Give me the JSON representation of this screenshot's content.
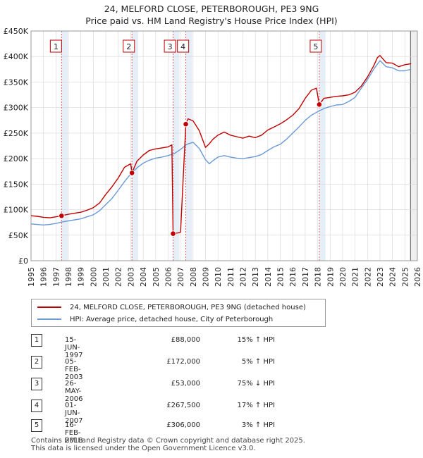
{
  "chart_data": {
    "type": "line",
    "title": "24, MELFORD CLOSE, PETERBOROUGH, PE3 9NG",
    "subtitle": "Price paid vs. HM Land Registry's House Price Index (HPI)",
    "xlim": [
      1995,
      2026
    ],
    "ylim": [
      0,
      450000
    ],
    "x_ticks": [
      "1995",
      "1996",
      "1997",
      "1998",
      "1999",
      "2000",
      "2001",
      "2002",
      "2003",
      "2004",
      "2005",
      "2006",
      "2007",
      "2008",
      "2009",
      "2010",
      "2011",
      "2012",
      "2013",
      "2014",
      "2015",
      "2016",
      "2017",
      "2018",
      "2019",
      "2020",
      "2021",
      "2022",
      "2023",
      "2024",
      "2025",
      "2026"
    ],
    "y_ticks": [
      "£0",
      "£50K",
      "£100K",
      "£150K",
      "£200K",
      "£250K",
      "£300K",
      "£350K",
      "£400K",
      "£450K"
    ],
    "y_tick_values": [
      0,
      50000,
      100000,
      150000,
      200000,
      250000,
      300000,
      350000,
      400000,
      450000
    ],
    "grid": true,
    "series": [
      {
        "name": "24, MELFORD CLOSE, PETERBOROUGH, PE3 9NG (detached house)",
        "color": "#c00000",
        "x": [
          1995.0,
          1995.5,
          1996.0,
          1996.5,
          1997.0,
          1997.45,
          1998.0,
          1998.5,
          1999.0,
          1999.5,
          2000.0,
          2000.5,
          2001.0,
          2001.5,
          2002.0,
          2002.5,
          2003.0,
          2003.1,
          2003.5,
          2004.0,
          2004.5,
          2005.0,
          2005.5,
          2006.0,
          2006.3,
          2006.4,
          2006.9,
          2007.0,
          2007.42,
          2007.6,
          2008.0,
          2008.5,
          2009.0,
          2009.3,
          2009.6,
          2010.0,
          2010.5,
          2011.0,
          2011.5,
          2012.0,
          2012.5,
          2013.0,
          2013.5,
          2014.0,
          2014.5,
          2015.0,
          2015.5,
          2016.0,
          2016.5,
          2017.0,
          2017.5,
          2017.9,
          2018.13,
          2018.5,
          2019.0,
          2019.5,
          2020.0,
          2020.5,
          2021.0,
          2021.5,
          2022.0,
          2022.5,
          2022.8,
          2023.0,
          2023.5,
          2024.0,
          2024.5,
          2025.0,
          2025.5
        ],
        "y": [
          88000,
          87000,
          85000,
          84000,
          86000,
          88000,
          91000,
          93000,
          95000,
          99000,
          104000,
          113000,
          130000,
          145000,
          162000,
          183000,
          190000,
          172000,
          195000,
          207000,
          216000,
          219000,
          221000,
          223000,
          227000,
          53000,
          55000,
          56000,
          267500,
          278000,
          274000,
          255000,
          222000,
          229000,
          238000,
          246000,
          252000,
          246000,
          243000,
          240000,
          244000,
          241000,
          246000,
          256000,
          262000,
          268000,
          276000,
          285000,
          298000,
          318000,
          334000,
          338000,
          306000,
          318000,
          320000,
          322000,
          323000,
          325000,
          330000,
          342000,
          360000,
          382000,
          398000,
          402000,
          388000,
          387000,
          380000,
          384000,
          386000
        ]
      },
      {
        "name": "HPI: Average price, detached house, City of Peterborough",
        "color": "#6a9ad4",
        "x": [
          1995.0,
          1995.5,
          1996.0,
          1996.5,
          1997.0,
          1997.5,
          1998.0,
          1998.5,
          1999.0,
          1999.5,
          2000.0,
          2000.5,
          2001.0,
          2001.5,
          2002.0,
          2002.5,
          2003.0,
          2003.5,
          2004.0,
          2004.5,
          2005.0,
          2005.5,
          2006.0,
          2006.5,
          2007.0,
          2007.5,
          2008.0,
          2008.5,
          2009.0,
          2009.3,
          2009.6,
          2010.0,
          2010.5,
          2011.0,
          2011.5,
          2012.0,
          2012.5,
          2013.0,
          2013.5,
          2014.0,
          2014.5,
          2015.0,
          2015.5,
          2016.0,
          2016.5,
          2017.0,
          2017.5,
          2018.0,
          2018.5,
          2019.0,
          2019.5,
          2020.0,
          2020.5,
          2021.0,
          2021.5,
          2022.0,
          2022.5,
          2023.0,
          2023.5,
          2024.0,
          2024.5,
          2025.0,
          2025.5
        ],
        "y": [
          72000,
          71000,
          70000,
          71000,
          73000,
          76000,
          78000,
          80000,
          82000,
          86000,
          90000,
          98000,
          110000,
          122000,
          138000,
          155000,
          170000,
          182000,
          191000,
          197000,
          201000,
          203000,
          206000,
          210000,
          218000,
          228000,
          232000,
          220000,
          198000,
          190000,
          196000,
          203000,
          206000,
          203000,
          201000,
          200000,
          202000,
          204000,
          208000,
          216000,
          223000,
          228000,
          238000,
          250000,
          262000,
          275000,
          285000,
          292000,
          298000,
          302000,
          305000,
          306000,
          312000,
          320000,
          338000,
          355000,
          375000,
          392000,
          380000,
          378000,
          372000,
          372000,
          375000
        ]
      }
    ],
    "sales": [
      {
        "num": "1",
        "x": 1997.45,
        "y": 88000
      },
      {
        "num": "2",
        "x": 2003.1,
        "y": 172000
      },
      {
        "num": "3",
        "x": 2006.4,
        "y": 53000
      },
      {
        "num": "4",
        "x": 2007.42,
        "y": 267500
      },
      {
        "num": "5",
        "x": 2018.13,
        "y": 306000
      }
    ]
  },
  "legend": {
    "property_label": "24, MELFORD CLOSE, PETERBOROUGH, PE3 9NG (detached house)",
    "hpi_label": "HPI: Average price, detached house, City of Peterborough"
  },
  "transactions": [
    {
      "num": "1",
      "date": "15-JUN-1997",
      "price": "£88,000",
      "hpi": "15% ↑ HPI"
    },
    {
      "num": "2",
      "date": "05-FEB-2003",
      "price": "£172,000",
      "hpi": "5% ↑ HPI"
    },
    {
      "num": "3",
      "date": "26-MAY-2006",
      "price": "£53,000",
      "hpi": "75% ↓ HPI"
    },
    {
      "num": "4",
      "date": "01-JUN-2007",
      "price": "£267,500",
      "hpi": "17% ↑ HPI"
    },
    {
      "num": "5",
      "date": "16-FEB-2018",
      "price": "£306,000",
      "hpi": "3% ↑ HPI"
    }
  ],
  "footer": {
    "line1": "Contains HM Land Registry data © Crown copyright and database right 2025.",
    "line2": "This data is licensed under the Open Government Licence v3.0."
  }
}
